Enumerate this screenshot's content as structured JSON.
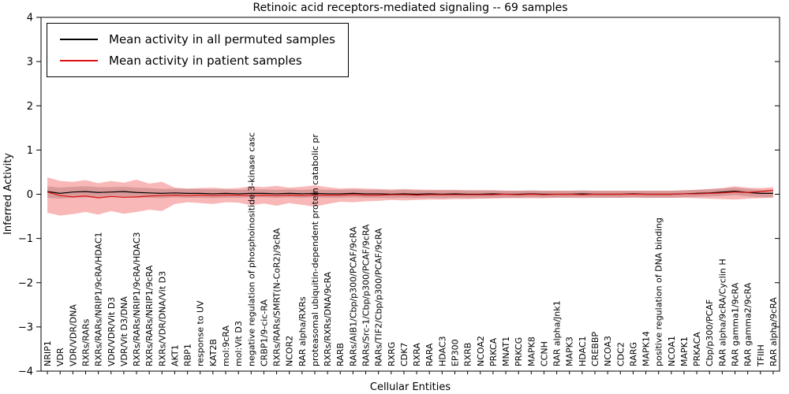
{
  "title": "Retinoic acid receptors-mediated signaling -- 69 samples",
  "axes": {
    "xlabel": "Cellular Entities",
    "ylabel": "Inferred Activity"
  },
  "chart_data": {
    "type": "line",
    "title": "Retinoic acid receptors-mediated signaling -- 69 samples",
    "xlabel": "Cellular Entities",
    "ylabel": "Inferred Activity",
    "ylim": [
      -4,
      4
    ],
    "yticks": [
      -4,
      -3,
      -2,
      -1,
      0,
      1,
      2,
      3,
      4
    ],
    "grid": false,
    "legend_position": "upper left",
    "categories": [
      "NRIP1",
      "VDR",
      "VDR/VDR/DNA",
      "RXRs/RARs",
      "RXRs/RARs/NRIP1/9cRA/HDAC1",
      "VDR/VDR/Vit D3",
      "VDR/Vit D3/DNA",
      "RXRs/RARs/NRIP1/9cRA/HDAC3",
      "RXRs/RARs/NRIP1/9cRA",
      "RXRs/VDR/DNA/Vit D3",
      "AKT1",
      "RBP1",
      "response to UV",
      "KAT2B",
      "mol:9cRA",
      "mol:Vit D3",
      "negative regulation of phosphoinositide 3-kinase casc",
      "CRBP1/9-cic-RA",
      "RXRs/RARs/SMRT(N-CoR2)/9cRA",
      "NCOR2",
      "RAR alpha/RXRs",
      "proteasomal ubiquitin-dependent protein catabolic pr",
      "RXRs/RXRs/DNA/9cRA",
      "RARB",
      "RARs/AIB1/Cbp/p300/PCAF/9cRA",
      "RARs/Src-1/Cbp/p300/PCAF/9cRA",
      "RARs/TIF2/Cbp/p300/PCAF/9cRA",
      "RXRG",
      "CDK7",
      "RXRA",
      "RARA",
      "HDAC3",
      "EP300",
      "RXRB",
      "NCOA2",
      "PRKCA",
      "MNAT1",
      "PRKCG",
      "MAPK8",
      "CCNH",
      "RAR alpha/Jnk1",
      "MAPK3",
      "HDAC1",
      "CREBBP",
      "NCOA3",
      "CDC2",
      "RARG",
      "MAPK14",
      "positive regulation of DNA binding",
      "NCOA1",
      "MAPK1",
      "PRKACA",
      "Cbp/p300/PCAF",
      "RAR alpha/9cRA/Cyclin H",
      "RAR gamma1/9cRA",
      "RAR gamma2/9cRA",
      "TFIIH",
      "RAR alpha/9cRA"
    ],
    "series": [
      {
        "name": "Mean activity in all permuted samples",
        "color": "#000000",
        "band_color": "#999999",
        "band_opacity": 0.45,
        "values": [
          0.06,
          0.02,
          0.05,
          0.06,
          0.04,
          0.05,
          0.06,
          0.04,
          0.03,
          0.02,
          0.03,
          0.02,
          0.02,
          0.01,
          0.02,
          0.01,
          0.02,
          0.02,
          0.01,
          0.02,
          0.01,
          0.02,
          0.01,
          0.01,
          0.02,
          0.01,
          0.01,
          0.0,
          0.01,
          0.0,
          0.01,
          0.0,
          0.01,
          0.0,
          0.0,
          0.01,
          0.0,
          0.0,
          0.01,
          0.0,
          0.0,
          0.0,
          0.01,
          0.0,
          0.0,
          0.0,
          0.01,
          0.0,
          0.0,
          0.0,
          0.01,
          0.02,
          0.03,
          0.05,
          0.07,
          0.04,
          0.02,
          0.02
        ],
        "band_upper": [
          0.18,
          0.15,
          0.17,
          0.18,
          0.16,
          0.16,
          0.17,
          0.15,
          0.14,
          0.12,
          0.13,
          0.12,
          0.12,
          0.11,
          0.11,
          0.1,
          0.11,
          0.11,
          0.1,
          0.11,
          0.1,
          0.11,
          0.1,
          0.1,
          0.11,
          0.1,
          0.1,
          0.09,
          0.1,
          0.09,
          0.09,
          0.09,
          0.09,
          0.09,
          0.09,
          0.09,
          0.08,
          0.08,
          0.09,
          0.08,
          0.08,
          0.08,
          0.09,
          0.08,
          0.08,
          0.08,
          0.08,
          0.08,
          0.08,
          0.08,
          0.09,
          0.1,
          0.11,
          0.13,
          0.15,
          0.12,
          0.1,
          0.1
        ],
        "band_lower": [
          -0.08,
          -0.1,
          -0.08,
          -0.07,
          -0.09,
          -0.07,
          -0.06,
          -0.08,
          -0.08,
          -0.09,
          -0.07,
          -0.08,
          -0.08,
          -0.09,
          -0.08,
          -0.08,
          -0.07,
          -0.07,
          -0.08,
          -0.07,
          -0.08,
          -0.07,
          -0.08,
          -0.08,
          -0.07,
          -0.08,
          -0.08,
          -0.09,
          -0.08,
          -0.09,
          -0.08,
          -0.09,
          -0.08,
          -0.09,
          -0.09,
          -0.08,
          -0.08,
          -0.08,
          -0.07,
          -0.08,
          -0.08,
          -0.08,
          -0.07,
          -0.08,
          -0.08,
          -0.08,
          -0.07,
          -0.08,
          -0.08,
          -0.08,
          -0.07,
          -0.06,
          -0.05,
          -0.04,
          -0.02,
          -0.05,
          -0.07,
          -0.07
        ]
      },
      {
        "name": "Mean activity in patient samples",
        "color": "#dd1111",
        "band_color": "#ee3333",
        "band_opacity": 0.35,
        "values": [
          0.05,
          -0.03,
          -0.06,
          -0.04,
          -0.08,
          -0.05,
          -0.07,
          -0.06,
          -0.04,
          -0.03,
          -0.02,
          -0.03,
          -0.02,
          -0.03,
          -0.02,
          -0.02,
          -0.03,
          -0.02,
          -0.03,
          -0.02,
          -0.03,
          -0.02,
          -0.02,
          -0.02,
          -0.01,
          -0.02,
          -0.02,
          -0.01,
          -0.01,
          -0.02,
          -0.01,
          -0.01,
          -0.01,
          -0.01,
          -0.01,
          -0.01,
          0.0,
          -0.01,
          0.0,
          -0.01,
          0.0,
          0.0,
          -0.01,
          0.0,
          0.0,
          0.0,
          0.0,
          0.0,
          0.0,
          0.0,
          0.01,
          0.01,
          0.02,
          0.03,
          0.05,
          0.04,
          0.06,
          0.09
        ],
        "band_upper": [
          0.38,
          0.3,
          0.28,
          0.32,
          0.25,
          0.3,
          0.26,
          0.33,
          0.24,
          0.28,
          0.15,
          0.13,
          0.14,
          0.15,
          0.13,
          0.14,
          0.18,
          0.16,
          0.19,
          0.15,
          0.17,
          0.2,
          0.16,
          0.13,
          0.14,
          0.13,
          0.12,
          0.11,
          0.12,
          0.11,
          0.1,
          0.1,
          0.1,
          0.09,
          0.09,
          0.09,
          0.08,
          0.08,
          0.08,
          0.08,
          0.08,
          0.08,
          0.08,
          0.08,
          0.08,
          0.08,
          0.08,
          0.08,
          0.08,
          0.08,
          0.09,
          0.1,
          0.12,
          0.14,
          0.18,
          0.15,
          0.14,
          0.16
        ],
        "band_lower": [
          -0.42,
          -0.48,
          -0.45,
          -0.4,
          -0.46,
          -0.38,
          -0.44,
          -0.4,
          -0.35,
          -0.38,
          -0.22,
          -0.18,
          -0.2,
          -0.22,
          -0.18,
          -0.19,
          -0.25,
          -0.21,
          -0.26,
          -0.2,
          -0.24,
          -0.28,
          -0.22,
          -0.17,
          -0.18,
          -0.16,
          -0.15,
          -0.13,
          -0.14,
          -0.13,
          -0.12,
          -0.12,
          -0.11,
          -0.11,
          -0.1,
          -0.1,
          -0.09,
          -0.09,
          -0.09,
          -0.09,
          -0.08,
          -0.08,
          -0.09,
          -0.08,
          -0.08,
          -0.08,
          -0.08,
          -0.08,
          -0.08,
          -0.08,
          -0.08,
          -0.09,
          -0.1,
          -0.11,
          -0.12,
          -0.1,
          -0.09,
          -0.08
        ]
      }
    ]
  }
}
